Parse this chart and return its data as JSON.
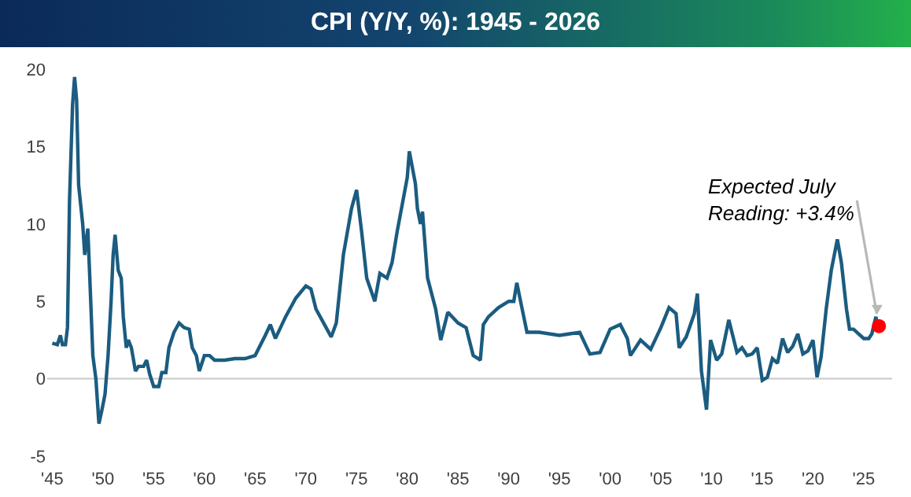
{
  "chart_data": {
    "type": "line",
    "title": "CPI (Y/Y, %): 1945 - 2026",
    "xlim": [
      1944.5,
      2027.8
    ],
    "ylim": [
      -5,
      20
    ],
    "ref_lines": [
      {
        "axis": "y",
        "value": 0,
        "color": "#c8c8c8"
      }
    ],
    "xticks": [
      {
        "value": 1945,
        "label": "'45"
      },
      {
        "value": 1950,
        "label": "'50"
      },
      {
        "value": 1955,
        "label": "'55"
      },
      {
        "value": 1960,
        "label": "'60"
      },
      {
        "value": 1965,
        "label": "'65"
      },
      {
        "value": 1970,
        "label": "'70"
      },
      {
        "value": 1975,
        "label": "'75"
      },
      {
        "value": 1980,
        "label": "'80"
      },
      {
        "value": 1985,
        "label": "'85"
      },
      {
        "value": 1990,
        "label": "'90"
      },
      {
        "value": 1995,
        "label": "'95"
      },
      {
        "value": 2000,
        "label": "'00"
      },
      {
        "value": 2005,
        "label": "'05"
      },
      {
        "value": 2010,
        "label": "'10"
      },
      {
        "value": 2015,
        "label": "'15"
      },
      {
        "value": 2020,
        "label": "'20"
      },
      {
        "value": 2025,
        "label": "'25"
      }
    ],
    "yticks": [
      -5,
      0,
      5,
      10,
      15,
      20
    ],
    "grid": false,
    "legend": false,
    "series": [
      {
        "color": "#1b5c80",
        "x": [
          1945.0,
          1945.5,
          1945.8,
          1946.0,
          1946.3,
          1946.5,
          1946.7,
          1947.0,
          1947.2,
          1947.4,
          1947.6,
          1948.0,
          1948.2,
          1948.5,
          1948.7,
          1949.0,
          1949.3,
          1949.6,
          1949.9,
          1950.2,
          1950.5,
          1950.8,
          1951.0,
          1951.2,
          1951.5,
          1951.8,
          1952.0,
          1952.3,
          1952.5,
          1952.8,
          1953.2,
          1953.5,
          1954.0,
          1954.3,
          1954.6,
          1955.0,
          1955.5,
          1955.8,
          1956.2,
          1956.5,
          1957.0,
          1957.5,
          1958.0,
          1958.5,
          1958.8,
          1959.2,
          1959.5,
          1960.0,
          1960.5,
          1961,
          1962,
          1963,
          1964,
          1965,
          1966,
          1966.5,
          1967,
          1968,
          1969,
          1970,
          1970.5,
          1971,
          1972,
          1972.5,
          1973,
          1973.7,
          1974.5,
          1975,
          1975.5,
          1976,
          1976.8,
          1977.3,
          1978,
          1978.5,
          1979,
          1980,
          1980.2,
          1980.8,
          1981,
          1981.3,
          1981.5,
          1982,
          1982.8,
          1983.3,
          1984,
          1985,
          1985.8,
          1986.5,
          1987,
          1987.2,
          1987.5,
          1988,
          1989,
          1990,
          1990.5,
          1990.8,
          1991.2,
          1991.8,
          1993,
          1995,
          1996,
          1997,
          1998,
          1999,
          2000,
          2001,
          2001.7,
          2002,
          2003,
          2004,
          2005,
          2005.8,
          2006.5,
          2006.8,
          2007.5,
          2008.3,
          2008.6,
          2009.0,
          2009.5,
          2009.9,
          2010.5,
          2011.0,
          2011.7,
          2012.5,
          2013,
          2013.5,
          2014,
          2014.5,
          2015.0,
          2015.5,
          2016,
          2016.5,
          2017,
          2017.5,
          2018,
          2018.5,
          2019,
          2019.5,
          2020,
          2020.4,
          2020.8,
          2021.3,
          2021.8,
          2022.4,
          2022.8,
          2023.3,
          2023.6,
          2024,
          2024.5,
          2025,
          2025.5,
          2025.8,
          2026.2,
          2026.3
        ],
        "values": [
          2.3,
          2.2,
          2.8,
          2.2,
          2.2,
          3.3,
          11.5,
          17.7,
          19.5,
          18,
          12.5,
          10,
          8,
          9.7,
          6.5,
          1.5,
          0,
          -2.9,
          -2,
          -1,
          1.5,
          5,
          8,
          9.3,
          7,
          6.5,
          4,
          2,
          2.5,
          2,
          0.5,
          0.8,
          0.8,
          1.2,
          0.3,
          -0.5,
          -0.5,
          0.4,
          0.4,
          2,
          3,
          3.6,
          3.3,
          3.2,
          2,
          1.5,
          0.5,
          1.5,
          1.5,
          1.2,
          1.2,
          1.3,
          1.3,
          1.5,
          2.8,
          3.5,
          2.6,
          4,
          5.2,
          6,
          5.8,
          4.5,
          3.3,
          2.7,
          3.6,
          8,
          11,
          12.2,
          9.5,
          6.5,
          5,
          6.8,
          6.5,
          7.5,
          9.5,
          13,
          14.7,
          12.6,
          11,
          10,
          10.8,
          6.5,
          4.5,
          2.5,
          4.3,
          3.6,
          3.3,
          1.5,
          1.3,
          1.2,
          3.5,
          4,
          4.6,
          5,
          5,
          6.2,
          4.9,
          3.0,
          3,
          2.8,
          2.9,
          3,
          1.6,
          1.7,
          3.2,
          3.5,
          2.6,
          1.5,
          2.5,
          1.9,
          3.3,
          4.6,
          4.2,
          2,
          2.7,
          4.2,
          5.5,
          0.5,
          -2,
          2.5,
          1.2,
          1.6,
          3.8,
          1.7,
          2,
          1.5,
          1.6,
          2,
          -0.1,
          0.1,
          1.3,
          1,
          2.6,
          1.7,
          2.1,
          2.9,
          1.6,
          1.8,
          2.5,
          0.1,
          1.4,
          4.5,
          7,
          9.0,
          7.5,
          4.5,
          3.2,
          3.2,
          2.9,
          2.6,
          2.6,
          2.9,
          4.0,
          3.6
        ]
      },
      {
        "type": "scatter",
        "marker": "circle",
        "color": "#ff0000",
        "x": [
          2026.5
        ],
        "values": [
          3.4
        ]
      }
    ],
    "annotations": [
      {
        "text": "Expected July\nReading: +3.4%",
        "x": 2026.5,
        "y": 3.4
      }
    ]
  }
}
